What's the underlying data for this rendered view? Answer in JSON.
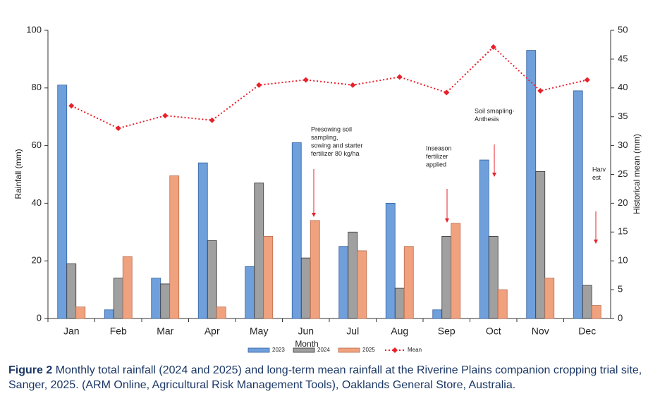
{
  "chart_data": {
    "type": "bar",
    "categories": [
      "Jan",
      "Feb",
      "Mar",
      "Apr",
      "May",
      "Jun",
      "Jul",
      "Aug",
      "Sep",
      "Oct",
      "Nov",
      "Dec"
    ],
    "series": [
      {
        "name": "2023",
        "color": "#6fa0dc",
        "values": [
          81,
          3,
          14,
          54,
          18,
          61,
          25,
          40,
          3,
          55,
          93,
          79
        ]
      },
      {
        "name": "2024",
        "color": "#a0a0a0",
        "values": [
          19,
          14,
          12,
          27,
          47,
          21,
          30,
          10.5,
          28.5,
          28.5,
          51,
          11.5
        ]
      },
      {
        "name": "2025",
        "color": "#f0a27f",
        "values": [
          4,
          21.5,
          49.5,
          4,
          28.5,
          34,
          23.5,
          25,
          33,
          10,
          14,
          4.5
        ]
      },
      {
        "name": "Mean",
        "color": "#e8202a",
        "type": "line",
        "axis": "y2",
        "values": [
          36.9,
          33.0,
          35.2,
          34.4,
          40.5,
          41.4,
          40.5,
          41.9,
          39.2,
          47.1,
          39.5,
          41.4
        ]
      }
    ],
    "xlabel": "Month",
    "ylabel": "Rainfall (mm)",
    "y2label": "Historical mean (mm)",
    "ylim": [
      0,
      100
    ],
    "yticks": [
      0,
      20,
      40,
      60,
      80,
      100
    ],
    "y2lim": [
      0,
      50
    ],
    "y2ticks": [
      0,
      5,
      10,
      15,
      20,
      25,
      30,
      35,
      40,
      45,
      50
    ],
    "grid": false,
    "legend": "bottom",
    "annotations": [
      {
        "lines": [
          "Presowing soil",
          "sampling,",
          "sowing and starter",
          "fertilizer 80 kg/ha"
        ]
      },
      {
        "lines": [
          "Inseason",
          "fertilizer",
          "applied"
        ]
      },
      {
        "lines": [
          "Soil smapling-",
          "Anthesis"
        ]
      },
      {
        "lines": [
          "Harv",
          "est"
        ]
      }
    ]
  },
  "caption": {
    "label": "Figure 2",
    "text": "Monthly total rainfall (2024 and 2025) and long-term mean rainfall at the Riverine Plains companion cropping trial site, Sanger, 2025. (ARM Online, Agricultural Risk Management Tools), Oaklands General Store, Australia."
  }
}
